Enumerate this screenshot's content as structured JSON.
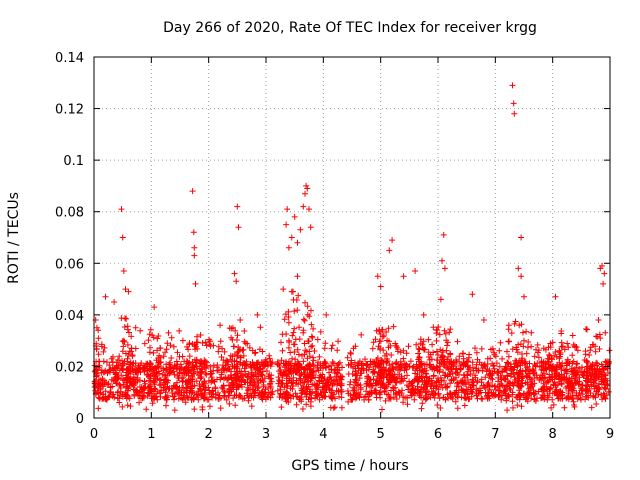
{
  "chart_data": {
    "type": "scatter",
    "title": "Day 266 of 2020, Rate Of TEC Index for receiver krgg",
    "xlabel": "GPS time / hours",
    "ylabel": "ROTI / TECUs",
    "xlim": [
      0,
      9
    ],
    "ylim": [
      0,
      0.14
    ],
    "grid": true,
    "marker": "+",
    "color": "#ff0000",
    "xticks": [
      0,
      1,
      2,
      3,
      4,
      5,
      6,
      7,
      8,
      9
    ],
    "xtick_labels": [
      "0",
      "1",
      "2",
      "3",
      "4",
      "5",
      "6",
      "7",
      "8",
      "9"
    ],
    "yticks": [
      0,
      0.02,
      0.04,
      0.06,
      0.08,
      0.1,
      0.12,
      0.14
    ],
    "ytick_labels": [
      "0",
      "0.02",
      "0.04",
      "0.06",
      "0.08",
      "0.1",
      "0.12",
      "0.14"
    ],
    "gaps": [
      [
        3.12,
        3.2
      ],
      [
        4.33,
        4.42
      ]
    ],
    "baseline_range": [
      0.007,
      0.022
    ],
    "outliers": [
      [
        0.03,
        0.038
      ],
      [
        0.05,
        0.035
      ],
      [
        0.2,
        0.047
      ],
      [
        0.35,
        0.045
      ],
      [
        0.48,
        0.081
      ],
      [
        0.5,
        0.07
      ],
      [
        0.52,
        0.057
      ],
      [
        0.55,
        0.05
      ],
      [
        0.6,
        0.049
      ],
      [
        1.05,
        0.043
      ],
      [
        1.3,
        0.033
      ],
      [
        1.55,
        0.03
      ],
      [
        1.72,
        0.088
      ],
      [
        1.74,
        0.072
      ],
      [
        1.75,
        0.066
      ],
      [
        1.75,
        0.063
      ],
      [
        1.77,
        0.052
      ],
      [
        2.2,
        0.036
      ],
      [
        2.45,
        0.056
      ],
      [
        2.48,
        0.053
      ],
      [
        2.5,
        0.082
      ],
      [
        2.52,
        0.074
      ],
      [
        2.55,
        0.038
      ],
      [
        2.85,
        0.04
      ],
      [
        3.3,
        0.05
      ],
      [
        3.35,
        0.075
      ],
      [
        3.37,
        0.081
      ],
      [
        3.4,
        0.066
      ],
      [
        3.45,
        0.07
      ],
      [
        3.5,
        0.078
      ],
      [
        3.55,
        0.068
      ],
      [
        3.6,
        0.073
      ],
      [
        3.65,
        0.082
      ],
      [
        3.68,
        0.087
      ],
      [
        3.7,
        0.09
      ],
      [
        3.72,
        0.089
      ],
      [
        3.75,
        0.081
      ],
      [
        3.78,
        0.074
      ],
      [
        3.45,
        0.049
      ],
      [
        3.55,
        0.055
      ],
      [
        4.05,
        0.04
      ],
      [
        4.95,
        0.055
      ],
      [
        5.0,
        0.051
      ],
      [
        5.15,
        0.065
      ],
      [
        5.2,
        0.069
      ],
      [
        5.4,
        0.055
      ],
      [
        5.6,
        0.057
      ],
      [
        5.75,
        0.04
      ],
      [
        6.05,
        0.046
      ],
      [
        6.07,
        0.061
      ],
      [
        6.1,
        0.071
      ],
      [
        6.12,
        0.058
      ],
      [
        6.6,
        0.048
      ],
      [
        6.8,
        0.038
      ],
      [
        7.3,
        0.129
      ],
      [
        7.32,
        0.122
      ],
      [
        7.33,
        0.118
      ],
      [
        7.45,
        0.07
      ],
      [
        7.4,
        0.058
      ],
      [
        7.45,
        0.055
      ],
      [
        7.5,
        0.047
      ],
      [
        8.05,
        0.047
      ],
      [
        8.35,
        0.032
      ],
      [
        8.8,
        0.038
      ],
      [
        8.83,
        0.058
      ],
      [
        8.86,
        0.059
      ],
      [
        8.9,
        0.056
      ],
      [
        8.88,
        0.052
      ]
    ]
  }
}
